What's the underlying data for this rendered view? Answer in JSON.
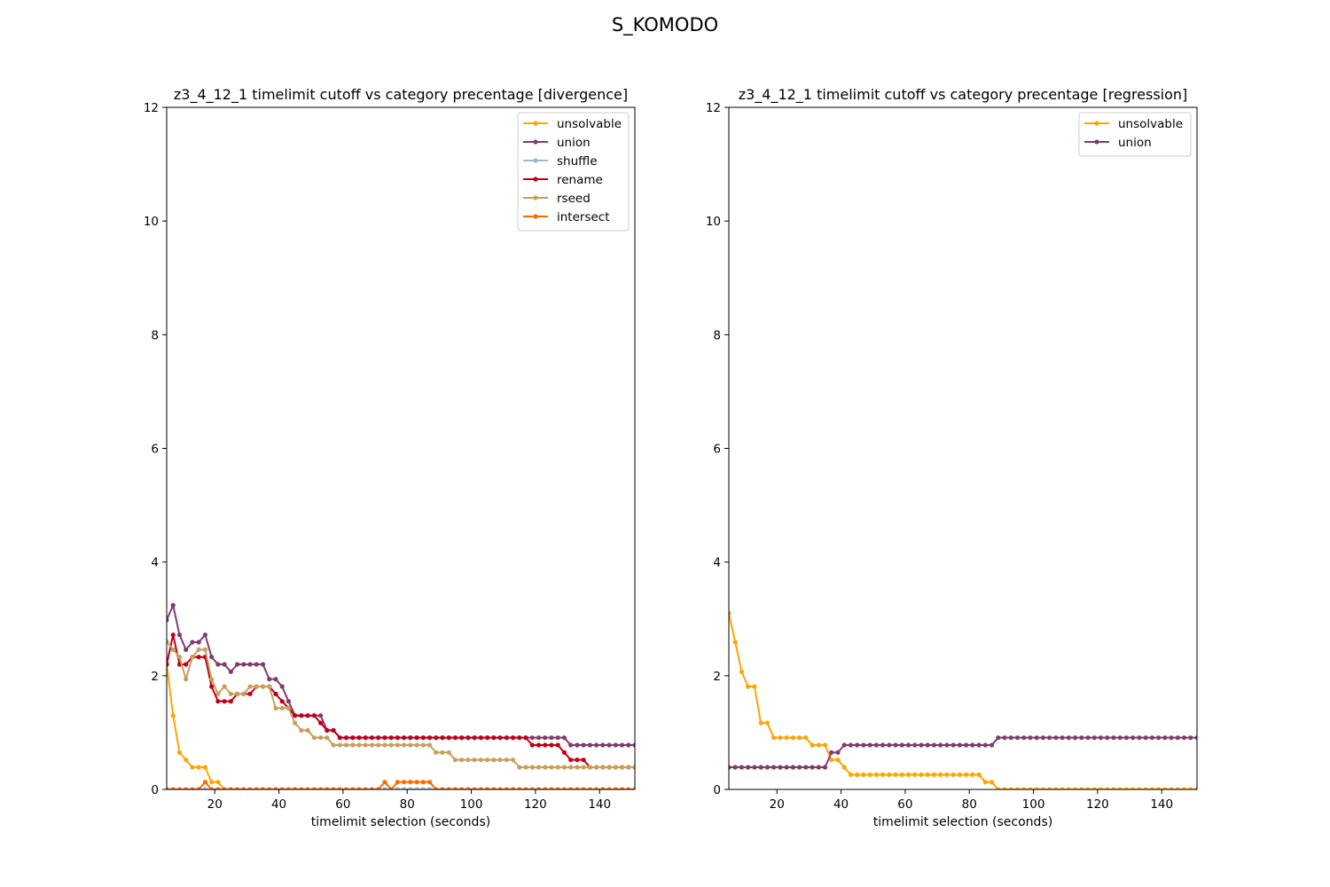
{
  "title": "S_KOMODO",
  "chart_data": [
    {
      "type": "line",
      "title": "z3_4_12_1 timelimit cutoff vs category precentage [divergence]",
      "xlabel": "timelimit selection (seconds)",
      "ylabel": "",
      "xlim": [
        5,
        151
      ],
      "ylim": [
        0,
        12
      ],
      "xticks": [
        20,
        40,
        60,
        80,
        100,
        120,
        140
      ],
      "yticks": [
        0,
        2,
        4,
        6,
        8,
        10,
        12
      ],
      "legend_position": "upper right",
      "x": {
        "start": 5,
        "step": 2,
        "count": 74
      },
      "series": [
        {
          "name": "unsolvable",
          "color": "#ffa500",
          "segments": [
            [
              5,
              2.2
            ],
            [
              7,
              1.3
            ],
            [
              9,
              0.65
            ],
            [
              11,
              0.52
            ],
            [
              13,
              0.39
            ],
            [
              15,
              0.39
            ],
            [
              17,
              0.39
            ],
            [
              19,
              0.13
            ],
            [
              21,
              0.13
            ],
            [
              23,
              0.0
            ],
            [
              151,
              0.0
            ]
          ]
        },
        {
          "name": "union",
          "color": "#7f3c6e",
          "segments": [
            [
              5,
              2.98
            ],
            [
              7,
              3.24
            ],
            [
              9,
              2.72
            ],
            [
              11,
              2.46
            ],
            [
              13,
              2.59
            ],
            [
              15,
              2.59
            ],
            [
              17,
              2.72
            ],
            [
              19,
              2.33
            ],
            [
              21,
              2.2
            ],
            [
              23,
              2.2
            ],
            [
              25,
              2.07
            ],
            [
              27,
              2.2
            ],
            [
              35,
              2.2
            ],
            [
              37,
              1.94
            ],
            [
              39,
              1.94
            ],
            [
              41,
              1.81
            ],
            [
              43,
              1.55
            ],
            [
              45,
              1.3
            ],
            [
              53,
              1.3
            ],
            [
              55,
              1.04
            ],
            [
              57,
              1.04
            ],
            [
              59,
              0.91
            ],
            [
              129,
              0.91
            ],
            [
              131,
              0.78
            ],
            [
              151,
              0.78
            ]
          ]
        },
        {
          "name": "shuffle",
          "color": "#9ab6cf",
          "segments": [
            [
              5,
              0.0
            ],
            [
              151,
              0.0
            ]
          ]
        },
        {
          "name": "rename",
          "color": "#c0001a",
          "segments": [
            [
              5,
              2.2
            ],
            [
              7,
              2.72
            ],
            [
              9,
              2.2
            ],
            [
              11,
              2.2
            ],
            [
              13,
              2.33
            ],
            [
              17,
              2.33
            ],
            [
              19,
              1.81
            ],
            [
              21,
              1.55
            ],
            [
              25,
              1.55
            ],
            [
              27,
              1.68
            ],
            [
              31,
              1.68
            ],
            [
              33,
              1.81
            ],
            [
              37,
              1.81
            ],
            [
              39,
              1.68
            ],
            [
              41,
              1.55
            ],
            [
              43,
              1.43
            ],
            [
              45,
              1.3
            ],
            [
              51,
              1.3
            ],
            [
              53,
              1.17
            ],
            [
              55,
              1.04
            ],
            [
              57,
              1.04
            ],
            [
              59,
              0.91
            ],
            [
              117,
              0.91
            ],
            [
              119,
              0.78
            ],
            [
              127,
              0.78
            ],
            [
              129,
              0.65
            ],
            [
              131,
              0.52
            ],
            [
              135,
              0.52
            ],
            [
              137,
              0.39
            ],
            [
              151,
              0.39
            ]
          ]
        },
        {
          "name": "rseed",
          "color": "#c99f5d",
          "segments": [
            [
              5,
              2.6
            ],
            [
              7,
              2.46
            ],
            [
              9,
              2.33
            ],
            [
              11,
              1.94
            ],
            [
              13,
              2.33
            ],
            [
              15,
              2.46
            ],
            [
              17,
              2.46
            ],
            [
              19,
              1.94
            ],
            [
              21,
              1.68
            ],
            [
              23,
              1.81
            ],
            [
              25,
              1.68
            ],
            [
              29,
              1.68
            ],
            [
              31,
              1.81
            ],
            [
              37,
              1.81
            ],
            [
              39,
              1.43
            ],
            [
              43,
              1.43
            ],
            [
              45,
              1.17
            ],
            [
              47,
              1.04
            ],
            [
              49,
              1.04
            ],
            [
              51,
              0.91
            ],
            [
              55,
              0.91
            ],
            [
              57,
              0.78
            ],
            [
              87,
              0.78
            ],
            [
              89,
              0.65
            ],
            [
              93,
              0.65
            ],
            [
              95,
              0.52
            ],
            [
              113,
              0.52
            ],
            [
              115,
              0.39
            ],
            [
              151,
              0.39
            ]
          ]
        },
        {
          "name": "intersect",
          "color": "#ff6a00",
          "segments": [
            [
              5,
              0.0
            ],
            [
              15,
              0.0
            ],
            [
              17,
              0.13
            ],
            [
              19,
              0.0
            ],
            [
              71,
              0.0
            ],
            [
              73,
              0.13
            ],
            [
              75,
              0.0
            ],
            [
              77,
              0.13
            ],
            [
              87,
              0.13
            ],
            [
              89,
              0.0
            ],
            [
              151,
              0.0
            ]
          ]
        }
      ]
    },
    {
      "type": "line",
      "title": "z3_4_12_1 timelimit cutoff vs category precentage [regression]",
      "xlabel": "timelimit selection (seconds)",
      "ylabel": "",
      "xlim": [
        5,
        151
      ],
      "ylim": [
        0,
        12
      ],
      "xticks": [
        20,
        40,
        60,
        80,
        100,
        120,
        140
      ],
      "yticks": [
        0,
        2,
        4,
        6,
        8,
        10,
        12
      ],
      "legend_position": "upper right",
      "x": {
        "start": 5,
        "step": 2,
        "count": 74
      },
      "series": [
        {
          "name": "unsolvable",
          "color": "#ffa500",
          "segments": [
            [
              5,
              3.1
            ],
            [
              7,
              2.59
            ],
            [
              9,
              2.07
            ],
            [
              11,
              1.81
            ],
            [
              13,
              1.81
            ],
            [
              15,
              1.17
            ],
            [
              17,
              1.17
            ],
            [
              19,
              0.91
            ],
            [
              29,
              0.91
            ],
            [
              31,
              0.78
            ],
            [
              35,
              0.78
            ],
            [
              37,
              0.52
            ],
            [
              39,
              0.52
            ],
            [
              41,
              0.39
            ],
            [
              43,
              0.26
            ],
            [
              83,
              0.26
            ],
            [
              85,
              0.13
            ],
            [
              87,
              0.13
            ],
            [
              89,
              0.0
            ],
            [
              151,
              0.0
            ]
          ]
        },
        {
          "name": "union",
          "color": "#7f3c6e",
          "segments": [
            [
              5,
              0.39
            ],
            [
              35,
              0.39
            ],
            [
              37,
              0.65
            ],
            [
              39,
              0.65
            ],
            [
              41,
              0.78
            ],
            [
              87,
              0.78
            ],
            [
              89,
              0.91
            ],
            [
              151,
              0.91
            ]
          ]
        }
      ]
    }
  ]
}
